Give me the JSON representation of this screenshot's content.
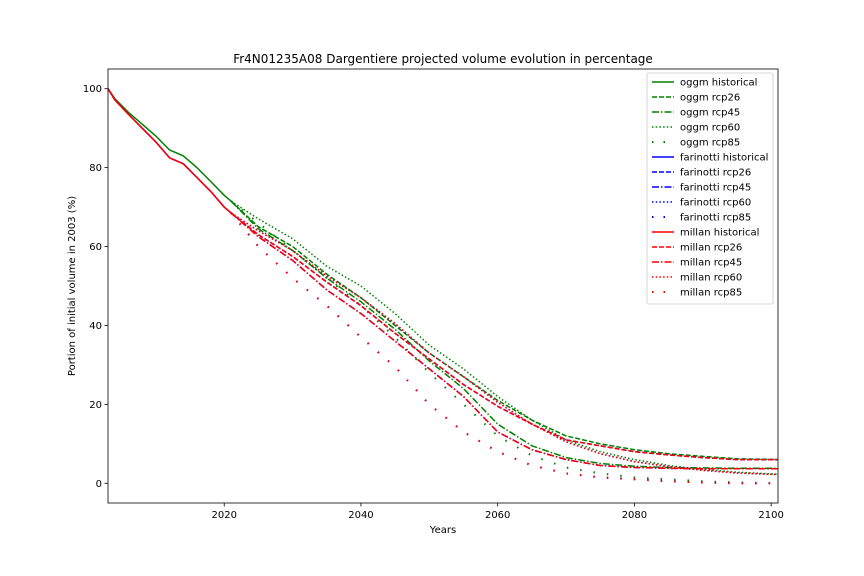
{
  "chart_data": {
    "type": "line",
    "title": "Fr4N01235A08 Dargentiere projected volume evolution in percentage",
    "xlabel": "Years",
    "ylabel": "Portion of initial volume in 2003 (%)",
    "xlim": [
      2003,
      2101
    ],
    "ylim": [
      -5,
      105
    ],
    "xticks": [
      2020,
      2040,
      2060,
      2080,
      2100
    ],
    "yticks": [
      0,
      20,
      40,
      60,
      80,
      100
    ],
    "grid": false,
    "legend_position": "upper-right",
    "colors": {
      "oggm": "#008000",
      "farinotti": "#0000ff",
      "millan": "#ff0000"
    },
    "series": [
      {
        "name": "oggm historical",
        "model": "oggm",
        "scenario": "historical",
        "style": "solid",
        "x": [
          2003,
          2004,
          2006,
          2008,
          2010,
          2012,
          2014,
          2016,
          2018,
          2020,
          2021
        ],
        "y": [
          100,
          97.5,
          94,
          91,
          88,
          84.5,
          83,
          80,
          76.5,
          73,
          71.5
        ]
      },
      {
        "name": "oggm rcp26",
        "model": "oggm",
        "scenario": "rcp26",
        "style": "dashed",
        "x": [
          2021,
          2025,
          2030,
          2035,
          2040,
          2045,
          2050,
          2055,
          2060,
          2065,
          2070,
          2075,
          2080,
          2085,
          2090,
          2095,
          2101
        ],
        "y": [
          71.5,
          65,
          60,
          53,
          47,
          40,
          33,
          27,
          21,
          16,
          12,
          10,
          8.5,
          7.5,
          6.8,
          6.2,
          6
        ]
      },
      {
        "name": "oggm rcp45",
        "model": "oggm",
        "scenario": "rcp45",
        "style": "dashdot",
        "x": [
          2021,
          2025,
          2030,
          2035,
          2040,
          2045,
          2050,
          2055,
          2060,
          2065,
          2070,
          2075,
          2080,
          2085,
          2090,
          2095,
          2101
        ],
        "y": [
          71.5,
          64.5,
          59,
          52,
          46,
          39,
          31,
          24,
          15,
          9.5,
          6.5,
          5,
          4.3,
          4,
          3.9,
          3.8,
          3.8
        ]
      },
      {
        "name": "oggm rcp60",
        "model": "oggm",
        "scenario": "rcp60",
        "style": "dotted",
        "x": [
          2021,
          2025,
          2030,
          2035,
          2040,
          2045,
          2050,
          2055,
          2060,
          2065,
          2070,
          2075,
          2080,
          2085,
          2090,
          2095,
          2101
        ],
        "y": [
          71.5,
          67,
          62,
          55,
          50,
          43,
          35,
          29,
          22,
          16,
          11,
          8,
          6,
          4.5,
          3.5,
          2.8,
          2.3
        ]
      },
      {
        "name": "oggm rcp85",
        "model": "oggm",
        "scenario": "rcp85",
        "style": "sparse-dotted",
        "x": [
          2021,
          2025,
          2030,
          2035,
          2040,
          2045,
          2050,
          2055,
          2060,
          2065,
          2070,
          2075,
          2080,
          2085,
          2090,
          2095,
          2101
        ],
        "y": [
          71.5,
          66,
          59,
          52,
          45,
          37,
          28,
          20,
          12,
          7,
          4,
          2.5,
          1.5,
          1,
          0.5,
          0.2,
          0
        ]
      },
      {
        "name": "farinotti historical",
        "model": "farinotti",
        "scenario": "historical",
        "style": "solid",
        "x": [
          2003,
          2004,
          2006,
          2008,
          2010,
          2012,
          2014,
          2016,
          2018,
          2020,
          2021
        ],
        "y": [
          100,
          97.2,
          93.5,
          90,
          86.5,
          82.5,
          81,
          77.5,
          74,
          70,
          68.5
        ]
      },
      {
        "name": "farinotti rcp26",
        "model": "farinotti",
        "scenario": "rcp26",
        "style": "dashed",
        "x": [
          2021,
          2025,
          2030,
          2035,
          2040,
          2045,
          2050,
          2055,
          2060,
          2065,
          2070,
          2075,
          2080,
          2085,
          2090,
          2095,
          2101
        ],
        "y": [
          68.5,
          63,
          57.5,
          51,
          45,
          38,
          31.5,
          25,
          19.5,
          15,
          11,
          9.5,
          8,
          7.2,
          6.5,
          6,
          6
        ]
      },
      {
        "name": "farinotti rcp45",
        "model": "farinotti",
        "scenario": "rcp45",
        "style": "dashdot",
        "x": [
          2021,
          2025,
          2030,
          2035,
          2040,
          2045,
          2050,
          2055,
          2060,
          2065,
          2070,
          2075,
          2080,
          2085,
          2090,
          2095,
          2101
        ],
        "y": [
          68.5,
          62.5,
          56.5,
          49,
          43,
          36,
          29,
          22,
          13,
          8.5,
          6,
          4.5,
          4,
          3.8,
          3.7,
          3.7,
          3.7
        ]
      },
      {
        "name": "farinotti rcp60",
        "model": "farinotti",
        "scenario": "rcp60",
        "style": "dotted",
        "x": [
          2021,
          2025,
          2030,
          2035,
          2040,
          2045,
          2050,
          2055,
          2060,
          2065,
          2070,
          2075,
          2080,
          2085,
          2090,
          2095,
          2101
        ],
        "y": [
          68.5,
          64,
          59,
          52.5,
          47,
          40.5,
          33,
          27,
          20.5,
          15,
          10.5,
          7.5,
          5.5,
          4.2,
          3.3,
          2.6,
          2.2
        ]
      },
      {
        "name": "farinotti rcp85",
        "model": "farinotti",
        "scenario": "rcp85",
        "style": "sparse-dotted",
        "x": [
          2021,
          2025,
          2030,
          2035,
          2040,
          2045,
          2050,
          2055,
          2060,
          2065,
          2070,
          2075,
          2080,
          2085,
          2090,
          2095,
          2101
        ],
        "y": [
          68.5,
          60,
          52,
          45,
          37,
          29.5,
          20,
          13,
          8,
          4.5,
          2.5,
          1.5,
          1,
          0.5,
          0.2,
          0,
          0
        ]
      },
      {
        "name": "millan historical",
        "model": "millan",
        "scenario": "historical",
        "style": "solid",
        "x": [
          2003,
          2004,
          2006,
          2008,
          2010,
          2012,
          2014,
          2016,
          2018,
          2020,
          2021
        ],
        "y": [
          100,
          97.2,
          93.5,
          90,
          86.5,
          82.5,
          81,
          77.5,
          74,
          70,
          68.5
        ]
      },
      {
        "name": "millan rcp26",
        "model": "millan",
        "scenario": "rcp26",
        "style": "dashed",
        "x": [
          2021,
          2025,
          2030,
          2035,
          2040,
          2045,
          2050,
          2055,
          2060,
          2065,
          2070,
          2075,
          2080,
          2085,
          2090,
          2095,
          2101
        ],
        "y": [
          68.5,
          63,
          57.5,
          51,
          45,
          38,
          31.5,
          25,
          19.5,
          15,
          11,
          9.5,
          8,
          7.2,
          6.5,
          6,
          6
        ]
      },
      {
        "name": "millan rcp45",
        "model": "millan",
        "scenario": "rcp45",
        "style": "dashdot",
        "x": [
          2021,
          2025,
          2030,
          2035,
          2040,
          2045,
          2050,
          2055,
          2060,
          2065,
          2070,
          2075,
          2080,
          2085,
          2090,
          2095,
          2101
        ],
        "y": [
          68.5,
          62.5,
          56.5,
          49,
          43,
          36,
          29,
          22,
          13,
          8.5,
          6,
          4.5,
          4,
          3.8,
          3.7,
          3.7,
          3.7
        ]
      },
      {
        "name": "millan rcp60",
        "model": "millan",
        "scenario": "rcp60",
        "style": "dotted",
        "x": [
          2021,
          2025,
          2030,
          2035,
          2040,
          2045,
          2050,
          2055,
          2060,
          2065,
          2070,
          2075,
          2080,
          2085,
          2090,
          2095,
          2101
        ],
        "y": [
          68.5,
          64,
          59,
          52.5,
          47,
          40.5,
          33,
          27,
          20.5,
          15,
          10.5,
          7.5,
          5.5,
          4.2,
          3.3,
          2.6,
          2.2
        ]
      },
      {
        "name": "millan rcp85",
        "model": "millan",
        "scenario": "rcp85",
        "style": "sparse-dotted",
        "x": [
          2021,
          2025,
          2030,
          2035,
          2040,
          2045,
          2050,
          2055,
          2060,
          2065,
          2070,
          2075,
          2080,
          2085,
          2090,
          2095,
          2101
        ],
        "y": [
          68.5,
          60,
          52,
          45,
          37,
          29.5,
          20,
          13,
          8,
          4.5,
          2.5,
          1.5,
          1,
          0.5,
          0.2,
          0,
          0
        ]
      }
    ]
  }
}
